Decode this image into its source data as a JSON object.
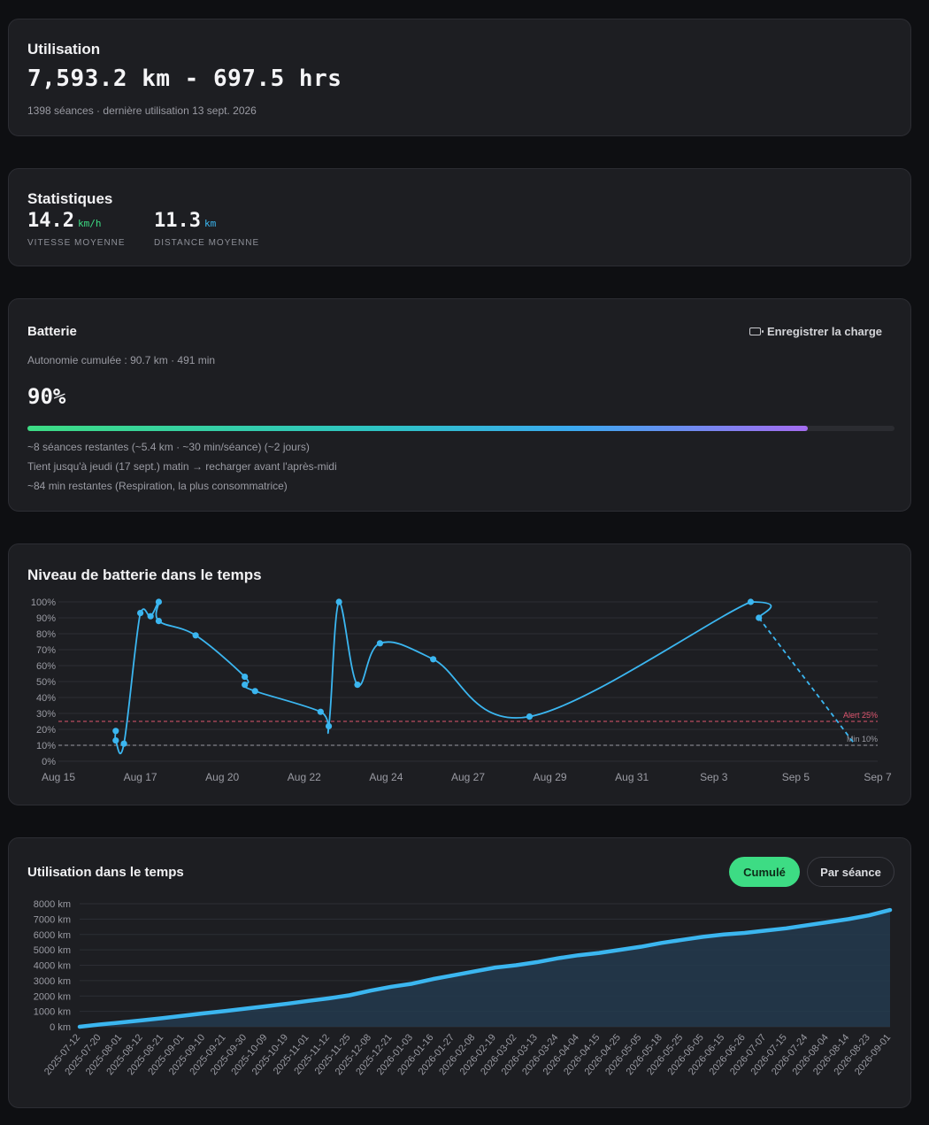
{
  "usage": {
    "title": "Utilisation",
    "headline": "7,593.2 km - 697.5 hrs",
    "subline": "1398 séances · dernière utilisation 13 sept. 2026"
  },
  "stats": {
    "title": "Statistiques",
    "speed": {
      "value": "14.2",
      "unit": "km/h",
      "label": "VITESSE MOYENNE"
    },
    "distance": {
      "value": "11.3",
      "unit": "km",
      "label": "DISTANCE MOYENNE"
    }
  },
  "battery": {
    "title": "Batterie",
    "charge_button": "Enregistrer la charge",
    "autonomy": "Autonomie cumulée : 90.7 km · 491 min",
    "percent_label": "90%",
    "percent": 90,
    "line1": "~8 séances restantes (~5.4 km · ~30 min/séance) (~2 jours)",
    "line2": "Tient jusqu'à jeudi (17 sept.) matin → recharger avant l'après-midi",
    "line3": "~84 min restantes (Respiration, la plus consommatrice)"
  },
  "battery_chart": {
    "title": "Niveau de batterie dans le temps",
    "chart_data": {
      "type": "line",
      "yticks": [
        "0%",
        "10%",
        "20%",
        "30%",
        "40%",
        "50%",
        "60%",
        "70%",
        "80%",
        "90%",
        "100%"
      ],
      "ylim": [
        0,
        100
      ],
      "xticks": [
        "Aug 15",
        "Aug 17",
        "Aug 20",
        "Aug 22",
        "Aug 24",
        "Aug 27",
        "Aug 29",
        "Aug 31",
        "Sep 3",
        "Sep 5",
        "Sep 7"
      ],
      "points": [
        {
          "x": 1.4,
          "y": 19
        },
        {
          "x": 1.4,
          "y": 13
        },
        {
          "x": 1.6,
          "y": 11
        },
        {
          "x": 2.0,
          "y": 93
        },
        {
          "x": 2.25,
          "y": 91
        },
        {
          "x": 2.45,
          "y": 100
        },
        {
          "x": 2.45,
          "y": 88
        },
        {
          "x": 3.35,
          "y": 79
        },
        {
          "x": 4.55,
          "y": 53
        },
        {
          "x": 4.55,
          "y": 48
        },
        {
          "x": 4.8,
          "y": 44
        },
        {
          "x": 6.4,
          "y": 31
        },
        {
          "x": 6.6,
          "y": 22
        },
        {
          "x": 6.85,
          "y": 100
        },
        {
          "x": 7.3,
          "y": 48
        },
        {
          "x": 7.85,
          "y": 74
        },
        {
          "x": 9.15,
          "y": 64
        },
        {
          "x": 11.5,
          "y": 28
        },
        {
          "x": 16.9,
          "y": 100
        },
        {
          "x": 17.1,
          "y": 90
        }
      ],
      "forecast": [
        {
          "x": 17.1,
          "y": 90
        },
        {
          "x": 19.4,
          "y": 12
        }
      ],
      "thresholds": [
        {
          "label": "Alert 25%",
          "value": 25,
          "color": "#e0566f"
        },
        {
          "label": "Min 10%",
          "value": 10,
          "color": "#9a9ba3"
        }
      ],
      "line_color": "#3bb6f0",
      "grid": true
    }
  },
  "usage_chart": {
    "title": "Utilisation dans le temps",
    "btn_cumulative": "Cumulé",
    "btn_session": "Par séance",
    "chart_data": {
      "type": "area",
      "ylabel": "",
      "yticks": [
        "0 km",
        "1000 km",
        "2000 km",
        "3000 km",
        "4000 km",
        "5000 km",
        "6000 km",
        "7000 km",
        "8000 km"
      ],
      "ylim": [
        0,
        8000
      ],
      "x": [
        "2025-07-12",
        "2025-07-20",
        "2025-08-01",
        "2025-08-12",
        "2025-08-21",
        "2025-09-01",
        "2025-09-10",
        "2025-09-21",
        "2025-09-30",
        "2025-10-09",
        "2025-10-19",
        "2025-11-01",
        "2025-11-12",
        "2025-11-25",
        "2025-12-08",
        "2025-12-21",
        "2026-01-03",
        "2026-01-16",
        "2026-01-27",
        "2026-02-08",
        "2026-02-19",
        "2026-03-02",
        "2026-03-13",
        "2026-03-24",
        "2026-04-04",
        "2026-04-15",
        "2026-04-25",
        "2026-05-05",
        "2026-05-18",
        "2026-05-25",
        "2026-06-05",
        "2026-06-15",
        "2026-06-26",
        "2026-07-07",
        "2026-07-15",
        "2026-07-24",
        "2026-08-04",
        "2026-08-14",
        "2026-08-23",
        "2026-09-01"
      ],
      "values": [
        0,
        150,
        280,
        420,
        560,
        720,
        880,
        1020,
        1180,
        1340,
        1500,
        1680,
        1850,
        2050,
        2350,
        2600,
        2800,
        3100,
        3350,
        3600,
        3850,
        4000,
        4200,
        4450,
        4650,
        4800,
        5000,
        5200,
        5450,
        5650,
        5850,
        6000,
        6100,
        6250,
        6400,
        6600,
        6800,
        7000,
        7250,
        7593
      ],
      "color": "#3bb6f0"
    }
  }
}
